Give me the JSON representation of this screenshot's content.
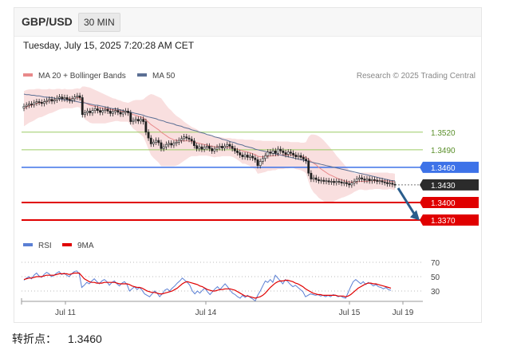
{
  "header": {
    "symbol": "GBP/USD",
    "timeframe": "30 MIN"
  },
  "datetime": "Tuesday, July 15, 2025 7:20:28 AM CET",
  "copyright": "Research © 2025 Trading Central",
  "colors": {
    "bollinger": "#f4c4c4",
    "ma20": "#e8898a",
    "ma50": "#5b6f94",
    "resistance": "#9ccc65",
    "pivot_blue": "#3d72e8",
    "support_red": "#e00000",
    "last_price": "#2b2b2b",
    "rsi": "#5a7fd4",
    "rsi_ma": "#e00000",
    "candle_up": "#ffffff",
    "candle_down": "#1f1f1f",
    "arrow": "#2a5d8c"
  },
  "chart_data": [
    {
      "type": "candlestick",
      "legend": [
        "MA 20 + Bollinger Bands",
        "MA 50"
      ],
      "ylim": [
        1.3355,
        1.36
      ],
      "x_ticks": [
        "Jul 11",
        "Jul 14",
        "Jul 15",
        "Jul 19"
      ],
      "levels": [
        {
          "value": 1.352,
          "label": "1.3520",
          "kind": "resistance"
        },
        {
          "value": 1.349,
          "label": "1.3490",
          "kind": "resistance"
        },
        {
          "value": 1.346,
          "label": "1.3460",
          "kind": "pivot"
        },
        {
          "value": 1.343,
          "label": "1.3430",
          "kind": "last"
        },
        {
          "value": 1.34,
          "label": "1.3400",
          "kind": "support"
        },
        {
          "value": 1.337,
          "label": "1.3370",
          "kind": "support"
        }
      ],
      "close": [
        1.3564,
        1.3566,
        1.3568,
        1.3567,
        1.357,
        1.3572,
        1.3571,
        1.3569,
        1.3572,
        1.3574,
        1.3576,
        1.3573,
        1.3575,
        1.3578,
        1.358,
        1.3577,
        1.3579,
        1.3576,
        1.3574,
        1.3577,
        1.358,
        1.3582,
        1.3579,
        1.355,
        1.3553,
        1.3556,
        1.3553,
        1.3557,
        1.356,
        1.3557,
        1.3554,
        1.3557,
        1.3559,
        1.3556,
        1.3552,
        1.3555,
        1.3557,
        1.3554,
        1.3551,
        1.3554,
        1.3556,
        1.3553,
        1.3538,
        1.354,
        1.3542,
        1.3539,
        1.3542,
        1.3538,
        1.352,
        1.351,
        1.35,
        1.3503,
        1.3506,
        1.3502,
        1.3492,
        1.3495,
        1.3499,
        1.3501,
        1.3498,
        1.3501,
        1.3503,
        1.3506,
        1.3509,
        1.3512,
        1.351,
        1.3508,
        1.3505,
        1.3497,
        1.3492,
        1.3495,
        1.3491,
        1.3494,
        1.3496,
        1.3492,
        1.3488,
        1.3491,
        1.3494,
        1.3496,
        1.3493,
        1.3496,
        1.3499,
        1.3496,
        1.3492,
        1.3488,
        1.3485,
        1.3481,
        1.3478,
        1.3481,
        1.3477,
        1.3479,
        1.3476,
        1.3473,
        1.3463,
        1.347,
        1.3475,
        1.348,
        1.3486,
        1.3484,
        1.3488,
        1.3484,
        1.3491,
        1.3488,
        1.3485,
        1.3482,
        1.3486,
        1.3484,
        1.3481,
        1.3478,
        1.348,
        1.3477,
        1.3474,
        1.3471,
        1.345,
        1.344,
        1.3442,
        1.3439,
        1.3437,
        1.3438,
        1.3436,
        1.3437,
        1.3435,
        1.3436,
        1.3434,
        1.3436,
        1.3435,
        1.3433,
        1.3434,
        1.3432,
        1.343,
        1.3433,
        1.3436,
        1.344,
        1.3442,
        1.344,
        1.3438,
        1.344,
        1.3437,
        1.3439,
        1.3438,
        1.3436,
        1.3437,
        1.3435,
        1.3434,
        1.3432,
        1.3433,
        1.3431,
        1.343
      ],
      "ma20": [
        1.356,
        1.3563,
        1.3565,
        1.3566,
        1.3567,
        1.3569,
        1.357,
        1.357,
        1.3571,
        1.3572,
        1.3574,
        1.3574,
        1.3575,
        1.3576,
        1.3577,
        1.3577,
        1.3578,
        1.3577,
        1.3577,
        1.3577,
        1.3578,
        1.3579,
        1.3578,
        1.3573,
        1.357,
        1.3568,
        1.3566,
        1.3565,
        1.3564,
        1.3563,
        1.3562,
        1.3561,
        1.356,
        1.356,
        1.3559,
        1.3558,
        1.3558,
        1.3557,
        1.3556,
        1.3555,
        1.3555,
        1.3554,
        1.3552,
        1.355,
        1.3549,
        1.3547,
        1.3546,
        1.3544,
        1.3541,
        1.3537,
        1.3533,
        1.353,
        1.3527,
        1.3524,
        1.352,
        1.3517,
        1.3514,
        1.3511,
        1.3509,
        1.3507,
        1.3506,
        1.3505,
        1.3505,
        1.3505,
        1.3505,
        1.3505,
        1.3504,
        1.3503,
        1.3502,
        1.3501,
        1.35,
        1.3499,
        1.3498,
        1.3497,
        1.3496,
        1.3495,
        1.3495,
        1.3495,
        1.3495,
        1.3494,
        1.3494,
        1.3494,
        1.3493,
        1.3492,
        1.3491,
        1.349,
        1.3488,
        1.3487,
        1.3486,
        1.3485,
        1.3483,
        1.3482,
        1.3479,
        1.3478,
        1.3478,
        1.3478,
        1.3479,
        1.3479,
        1.348,
        1.348,
        1.3481,
        1.3481,
        1.3481,
        1.3481,
        1.3481,
        1.3481,
        1.3481,
        1.348,
        1.348,
        1.3479,
        1.3478,
        1.3477,
        1.3474,
        1.347,
        1.3467,
        1.3464,
        1.346,
        1.3457,
        1.3454,
        1.3451,
        1.3448,
        1.3446,
        1.3444,
        1.3442,
        1.344,
        1.3439,
        1.3437,
        1.3436,
        1.3435,
        1.3435,
        1.3434,
        1.3435,
        1.3436,
        1.3436,
        1.3436,
        1.3436,
        1.3437,
        1.3437,
        1.3437,
        1.3437,
        1.3437,
        1.3437,
        1.3437,
        1.3437,
        1.3436,
        1.3436,
        1.3435
      ],
      "bb_upper": [
        1.359,
        1.3592,
        1.3593,
        1.3593,
        1.3593,
        1.3594,
        1.3594,
        1.3593,
        1.3593,
        1.3593,
        1.3594,
        1.3593,
        1.3593,
        1.3594,
        1.3594,
        1.3593,
        1.3594,
        1.3593,
        1.3593,
        1.3593,
        1.3594,
        1.3595,
        1.3594,
        1.3598,
        1.3598,
        1.3597,
        1.3596,
        1.3594,
        1.3592,
        1.359,
        1.3588,
        1.3586,
        1.3584,
        1.3582,
        1.358,
        1.3578,
        1.3577,
        1.3575,
        1.3574,
        1.3572,
        1.3571,
        1.357,
        1.3572,
        1.3574,
        1.3575,
        1.3575,
        1.3575,
        1.3576,
        1.358,
        1.3583,
        1.3585,
        1.3584,
        1.3582,
        1.358,
        1.3578,
        1.3572,
        1.3566,
        1.3561,
        1.3557,
        1.3552,
        1.3548,
        1.3545,
        1.3542,
        1.3538,
        1.3535,
        1.3532,
        1.3529,
        1.3527,
        1.3525,
        1.3522,
        1.352,
        1.3518,
        1.3516,
        1.3515,
        1.3514,
        1.3513,
        1.3512,
        1.3512,
        1.3511,
        1.351,
        1.351,
        1.351,
        1.3509,
        1.3509,
        1.3508,
        1.3508,
        1.3508,
        1.3507,
        1.3507,
        1.3507,
        1.3507,
        1.3506,
        1.3506,
        1.3506,
        1.3505,
        1.3505,
        1.3505,
        1.3505,
        1.3505,
        1.3505,
        1.3504,
        1.3504,
        1.3504,
        1.3504,
        1.3504,
        1.3503,
        1.3503,
        1.3503,
        1.3503,
        1.3502,
        1.3502,
        1.3503,
        1.3512,
        1.3516,
        1.3516,
        1.3515,
        1.3513,
        1.351,
        1.3506,
        1.3501,
        1.3496,
        1.3491,
        1.3486,
        1.348,
        1.3475,
        1.347,
        1.3465,
        1.346,
        1.3455,
        1.3452,
        1.345,
        1.3449,
        1.345,
        1.3451,
        1.3451,
        1.3451,
        1.3451,
        1.3451,
        1.3451,
        1.3451,
        1.3451,
        1.3451,
        1.3451,
        1.3451,
        1.345,
        1.345,
        1.3449
      ],
      "bb_lower": [
        1.353,
        1.3533,
        1.3536,
        1.3538,
        1.354,
        1.3543,
        1.3545,
        1.3546,
        1.3548,
        1.355,
        1.3552,
        1.3553,
        1.3555,
        1.3557,
        1.3559,
        1.356,
        1.3561,
        1.3561,
        1.3561,
        1.3561,
        1.3562,
        1.3563,
        1.3562,
        1.3548,
        1.3542,
        1.3539,
        1.3536,
        1.3535,
        1.3535,
        1.3535,
        1.3535,
        1.3535,
        1.3535,
        1.3536,
        1.3537,
        1.3538,
        1.3539,
        1.3539,
        1.3538,
        1.3538,
        1.3538,
        1.3538,
        1.3532,
        1.3526,
        1.3523,
        1.3519,
        1.3516,
        1.3512,
        1.3502,
        1.3491,
        1.3481,
        1.3476,
        1.3472,
        1.3468,
        1.3462,
        1.3462,
        1.3462,
        1.3462,
        1.3462,
        1.3462,
        1.3463,
        1.3465,
        1.3468,
        1.3471,
        1.3474,
        1.3477,
        1.3479,
        1.3479,
        1.3479,
        1.348,
        1.348,
        1.348,
        1.348,
        1.3479,
        1.3478,
        1.3477,
        1.3478,
        1.3478,
        1.3479,
        1.3479,
        1.3479,
        1.3479,
        1.3478,
        1.3476,
        1.3473,
        1.347,
        1.3466,
        1.3466,
        1.3464,
        1.3462,
        1.3459,
        1.3457,
        1.3449,
        1.345,
        1.3451,
        1.3452,
        1.3454,
        1.3454,
        1.3455,
        1.3455,
        1.3457,
        1.3457,
        1.3457,
        1.3458,
        1.3458,
        1.3459,
        1.3459,
        1.3457,
        1.3456,
        1.3455,
        1.3453,
        1.345,
        1.3436,
        1.3424,
        1.3417,
        1.3413,
        1.3408,
        1.3405,
        1.3402,
        1.34,
        1.3399,
        1.34,
        1.3402,
        1.3404,
        1.3406,
        1.3408,
        1.3409,
        1.3411,
        1.3413,
        1.3415,
        1.3418,
        1.342,
        1.3422,
        1.3422,
        1.3421,
        1.3421,
        1.3422,
        1.3422,
        1.3423,
        1.3423,
        1.3423,
        1.3422,
        1.3422,
        1.3422,
        1.3423,
        1.3422,
        1.3421
      ],
      "ma50": [
        1.3585,
        1.3584,
        1.3584,
        1.3583,
        1.3583,
        1.3582,
        1.3582,
        1.3581,
        1.358,
        1.358,
        1.3579,
        1.3579,
        1.3578,
        1.3577,
        1.3577,
        1.3576,
        1.3575,
        1.3575,
        1.3574,
        1.3573,
        1.3573,
        1.3572,
        1.3571,
        1.357,
        1.357,
        1.3569,
        1.3568,
        1.3567,
        1.3566,
        1.3566,
        1.3565,
        1.3564,
        1.3563,
        1.3562,
        1.3561,
        1.356,
        1.356,
        1.3559,
        1.3558,
        1.3557,
        1.3556,
        1.3555,
        1.3554,
        1.3553,
        1.3552,
        1.3551,
        1.355,
        1.3549,
        1.3547,
        1.3546,
        1.3545,
        1.3544,
        1.3543,
        1.3541,
        1.354,
        1.3539,
        1.3537,
        1.3536,
        1.3535,
        1.3534,
        1.3532,
        1.3531,
        1.353,
        1.3528,
        1.3527,
        1.3526,
        1.3524,
        1.3523,
        1.3522,
        1.352,
        1.3519,
        1.3518,
        1.3516,
        1.3515,
        1.3514,
        1.3512,
        1.3511,
        1.351,
        1.3508,
        1.3507,
        1.3506,
        1.3504,
        1.3503,
        1.3502,
        1.35,
        1.3499,
        1.3498,
        1.3496,
        1.3495,
        1.3494,
        1.3493,
        1.3491,
        1.349,
        1.3489,
        1.3488,
        1.3487,
        1.3486,
        1.3485,
        1.3484,
        1.3483,
        1.3482,
        1.3481,
        1.348,
        1.3479,
        1.3478,
        1.3477,
        1.3476,
        1.3475,
        1.3474,
        1.3473,
        1.3472,
        1.3471,
        1.347,
        1.3469,
        1.3468,
        1.3467,
        1.3466,
        1.3465,
        1.3464,
        1.3463,
        1.3462,
        1.3461,
        1.346,
        1.3459,
        1.3458,
        1.3457,
        1.3456,
        1.3455,
        1.3454,
        1.3453,
        1.3452,
        1.3451,
        1.345,
        1.3449,
        1.3448,
        1.3447,
        1.3446,
        1.3445,
        1.3444,
        1.3443,
        1.3442,
        1.3441,
        1.344,
        1.3439,
        1.3438,
        1.3437,
        1.3437
      ]
    },
    {
      "type": "line",
      "legend": [
        "RSI",
        "9MA"
      ],
      "ylim": [
        20,
        80
      ],
      "levels": [
        70,
        50,
        30
      ],
      "rsi": [
        45,
        48,
        50,
        47,
        52,
        55,
        51,
        49,
        53,
        56,
        54,
        50,
        52,
        55,
        57,
        53,
        55,
        52,
        50,
        54,
        57,
        58,
        54,
        35,
        38,
        42,
        40,
        44,
        47,
        43,
        40,
        44,
        46,
        43,
        38,
        42,
        44,
        40,
        37,
        41,
        43,
        39,
        30,
        33,
        36,
        32,
        35,
        31,
        26,
        24,
        22,
        26,
        30,
        27,
        22,
        26,
        31,
        33,
        30,
        34,
        37,
        41,
        44,
        48,
        45,
        42,
        38,
        30,
        26,
        30,
        27,
        31,
        34,
        29,
        25,
        29,
        33,
        36,
        32,
        36,
        40,
        36,
        31,
        27,
        25,
        22,
        20,
        24,
        21,
        24,
        21,
        19,
        16,
        24,
        30,
        37,
        44,
        42,
        46,
        42,
        52,
        48,
        44,
        40,
        46,
        43,
        39,
        36,
        38,
        35,
        32,
        29,
        22,
        24,
        26,
        25,
        24,
        25,
        23,
        24,
        22,
        24,
        22,
        25,
        24,
        22,
        23,
        21,
        20,
        28,
        36,
        43,
        46,
        43,
        40,
        43,
        39,
        42,
        40,
        37,
        39,
        36,
        35,
        33,
        35,
        32,
        31
      ],
      "rsi_ma": [
        46,
        47,
        48,
        48,
        49,
        50,
        50,
        50,
        51,
        52,
        52,
        52,
        52,
        53,
        54,
        54,
        54,
        54,
        53,
        54,
        55,
        55,
        55,
        51,
        47,
        45,
        43,
        42,
        42,
        41,
        41,
        41,
        42,
        42,
        42,
        42,
        42,
        41,
        40,
        40,
        40,
        40,
        39,
        37,
        36,
        35,
        35,
        34,
        32,
        30,
        29,
        28,
        28,
        27,
        26,
        26,
        27,
        28,
        29,
        30,
        32,
        34,
        37,
        40,
        42,
        43,
        42,
        41,
        40,
        39,
        37,
        36,
        34,
        32,
        31,
        30,
        30,
        31,
        32,
        32,
        33,
        33,
        33,
        32,
        31,
        29,
        27,
        25,
        23,
        23,
        22,
        21,
        20,
        21,
        22,
        24,
        27,
        31,
        35,
        38,
        41,
        43,
        44,
        44,
        45,
        45,
        44,
        43,
        41,
        40,
        38,
        36,
        33,
        31,
        29,
        27,
        26,
        25,
        25,
        24,
        24,
        24,
        24,
        24,
        24,
        23,
        23,
        23,
        22,
        23,
        25,
        28,
        31,
        34,
        36,
        38,
        40,
        41,
        41,
        40,
        40,
        39,
        38,
        37,
        36,
        35,
        34
      ],
      "x_ticks": [
        "Jul 11",
        "Jul 14",
        "Jul 15",
        "Jul 19"
      ]
    }
  ],
  "pivot_note": {
    "label": "转折点：",
    "value": "1.3460"
  }
}
